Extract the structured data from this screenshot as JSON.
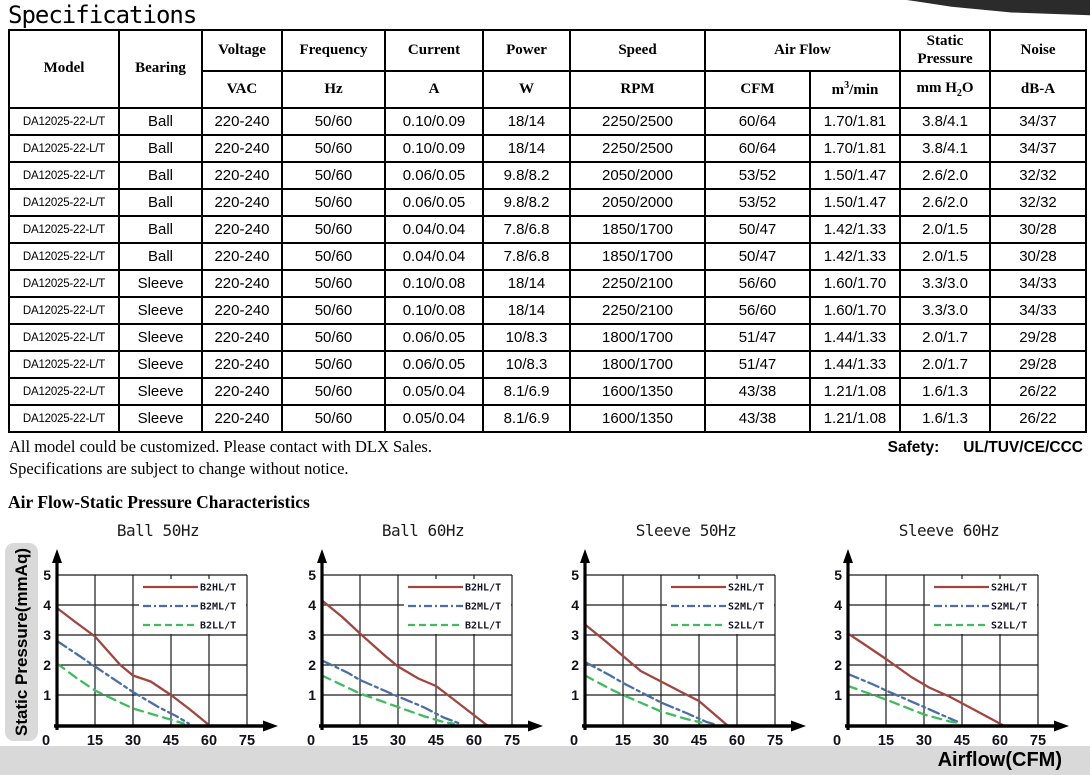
{
  "page": {
    "title": "Specifications",
    "note_line1": "All model could be customized. Please contact with DLX Sales.",
    "note_line2": "Specifications are subject to change without notice.",
    "safety_label": "Safety:",
    "safety_value": "UL/TUV/CE/CCC",
    "section_title": "Air Flow-Static Pressure Characteristics",
    "y_axis_label": "Static Pressure(mmAq)",
    "x_axis_label": "Airflow(CFM)"
  },
  "table": {
    "header": {
      "model": "Model",
      "bearing": "Bearing",
      "voltage": "Voltage",
      "frequency": "Frequency",
      "current": "Current",
      "power": "Power",
      "speed": "Speed",
      "air_flow": "Air Flow",
      "static_pressure": "Static Pressure",
      "noise": "Noise",
      "units": {
        "vac": "VAC",
        "hz": "Hz",
        "a": "A",
        "w": "W",
        "rpm": "RPM",
        "cfm": "CFM",
        "m3": {
          "base": "m",
          "sup": "3",
          "rest": "/min"
        },
        "h2o": {
          "base": "mm H",
          "sub": "2",
          "rest": "O"
        },
        "dba": "dB-A"
      }
    },
    "rows": [
      [
        "DA12025-22-L/T",
        "Ball",
        "220-240",
        "50/60",
        "0.10/0.09",
        "18/14",
        "2250/2500",
        "60/64",
        "1.70/1.81",
        "3.8/4.1",
        "34/37"
      ],
      [
        "DA12025-22-L/T",
        "Ball",
        "220-240",
        "50/60",
        "0.10/0.09",
        "18/14",
        "2250/2500",
        "60/64",
        "1.70/1.81",
        "3.8/4.1",
        "34/37"
      ],
      [
        "DA12025-22-L/T",
        "Ball",
        "220-240",
        "50/60",
        "0.06/0.05",
        "9.8/8.2",
        "2050/2000",
        "53/52",
        "1.50/1.47",
        "2.6/2.0",
        "32/32"
      ],
      [
        "DA12025-22-L/T",
        "Ball",
        "220-240",
        "50/60",
        "0.06/0.05",
        "9.8/8.2",
        "2050/2000",
        "53/52",
        "1.50/1.47",
        "2.6/2.0",
        "32/32"
      ],
      [
        "DA12025-22-L/T",
        "Ball",
        "220-240",
        "50/60",
        "0.04/0.04",
        "7.8/6.8",
        "1850/1700",
        "50/47",
        "1.42/1.33",
        "2.0/1.5",
        "30/28"
      ],
      [
        "DA12025-22-L/T",
        "Ball",
        "220-240",
        "50/60",
        "0.04/0.04",
        "7.8/6.8",
        "1850/1700",
        "50/47",
        "1.42/1.33",
        "2.0/1.5",
        "30/28"
      ],
      [
        "DA12025-22-L/T",
        "Sleeve",
        "220-240",
        "50/60",
        "0.10/0.08",
        "18/14",
        "2250/2100",
        "56/60",
        "1.60/1.70",
        "3.3/3.0",
        "34/33"
      ],
      [
        "DA12025-22-L/T",
        "Sleeve",
        "220-240",
        "50/60",
        "0.10/0.08",
        "18/14",
        "2250/2100",
        "56/60",
        "1.60/1.70",
        "3.3/3.0",
        "34/33"
      ],
      [
        "DA12025-22-L/T",
        "Sleeve",
        "220-240",
        "50/60",
        "0.06/0.05",
        "10/8.3",
        "1800/1700",
        "51/47",
        "1.44/1.33",
        "2.0/1.7",
        "29/28"
      ],
      [
        "DA12025-22-L/T",
        "Sleeve",
        "220-240",
        "50/60",
        "0.06/0.05",
        "10/8.3",
        "1800/1700",
        "51/47",
        "1.44/1.33",
        "2.0/1.7",
        "29/28"
      ],
      [
        "DA12025-22-L/T",
        "Sleeve",
        "220-240",
        "50/60",
        "0.05/0.04",
        "8.1/6.9",
        "1600/1350",
        "43/38",
        "1.21/1.08",
        "1.6/1.3",
        "26/22"
      ],
      [
        "DA12025-22-L/T",
        "Sleeve",
        "220-240",
        "50/60",
        "0.05/0.04",
        "8.1/6.9",
        "1600/1350",
        "43/38",
        "1.21/1.08",
        "1.6/1.3",
        "26/22"
      ]
    ]
  },
  "chart_data": [
    {
      "type": "line",
      "title": "Ball 50Hz",
      "xlabel": "Airflow(CFM)",
      "ylabel": "Static Pressure(mmAq)",
      "xlim": [
        0,
        75
      ],
      "ylim": [
        0,
        5
      ],
      "xticks": [
        0,
        15,
        30,
        45,
        60,
        75
      ],
      "yticks": [
        0,
        1,
        2,
        3,
        4,
        5
      ],
      "grid": true,
      "legend_position": "top-right",
      "series": [
        {
          "name": "B2HL/T",
          "color": "#a1453f",
          "dash": "solid",
          "points": [
            [
              0,
              3.9
            ],
            [
              7,
              3.45
            ],
            [
              15,
              2.95
            ],
            [
              25,
              2.0
            ],
            [
              30,
              1.65
            ],
            [
              37,
              1.45
            ],
            [
              45,
              1.0
            ],
            [
              52,
              0.55
            ],
            [
              60,
              0
            ]
          ]
        },
        {
          "name": "B2ML/T",
          "color": "#4a6fa5",
          "dash": "dashdot",
          "points": [
            [
              0,
              2.8
            ],
            [
              8,
              2.35
            ],
            [
              15,
              1.95
            ],
            [
              30,
              1.1
            ],
            [
              40,
              0.6
            ],
            [
              47,
              0.3
            ],
            [
              52,
              0.05
            ]
          ]
        },
        {
          "name": "B2LL/T",
          "color": "#3ebc5e",
          "dash": "dashed",
          "points": [
            [
              0,
              2.05
            ],
            [
              8,
              1.55
            ],
            [
              15,
              1.15
            ],
            [
              25,
              0.75
            ],
            [
              30,
              0.55
            ],
            [
              40,
              0.3
            ],
            [
              50,
              0.05
            ]
          ]
        }
      ]
    },
    {
      "type": "line",
      "title": "Ball 60Hz",
      "xlabel": "Airflow(CFM)",
      "ylabel": "Static Pressure(mmAq)",
      "xlim": [
        0,
        75
      ],
      "ylim": [
        0,
        5
      ],
      "xticks": [
        0,
        15,
        30,
        45,
        60,
        75
      ],
      "yticks": [
        0,
        1,
        2,
        3,
        4,
        5
      ],
      "grid": true,
      "legend_position": "top-right",
      "series": [
        {
          "name": "B2HL/T",
          "color": "#a1453f",
          "dash": "solid",
          "points": [
            [
              0,
              4.15
            ],
            [
              8,
              3.6
            ],
            [
              15,
              3.05
            ],
            [
              25,
              2.3
            ],
            [
              30,
              1.95
            ],
            [
              38,
              1.55
            ],
            [
              45,
              1.3
            ],
            [
              52,
              0.85
            ],
            [
              65,
              0
            ]
          ]
        },
        {
          "name": "B2ML/T",
          "color": "#4a6fa5",
          "dash": "dashdot",
          "points": [
            [
              0,
              2.15
            ],
            [
              10,
              1.75
            ],
            [
              15,
              1.5
            ],
            [
              30,
              0.95
            ],
            [
              40,
              0.6
            ],
            [
              48,
              0.25
            ],
            [
              55,
              0.03
            ]
          ]
        },
        {
          "name": "B2LL/T",
          "color": "#3ebc5e",
          "dash": "dashed",
          "points": [
            [
              0,
              1.65
            ],
            [
              10,
              1.25
            ],
            [
              15,
              1.05
            ],
            [
              30,
              0.6
            ],
            [
              40,
              0.3
            ],
            [
              48,
              0.1
            ],
            [
              52,
              0.04
            ]
          ]
        }
      ]
    },
    {
      "type": "line",
      "title": "Sleeve 50Hz",
      "xlabel": "Airflow(CFM)",
      "ylabel": "Static Pressure(mmAq)",
      "xlim": [
        0,
        75
      ],
      "ylim": [
        0,
        5
      ],
      "xticks": [
        0,
        15,
        30,
        45,
        60,
        75
      ],
      "yticks": [
        0,
        1,
        2,
        3,
        4,
        5
      ],
      "grid": true,
      "legend_position": "top-right",
      "series": [
        {
          "name": "S2HL/T",
          "color": "#a1453f",
          "dash": "solid",
          "points": [
            [
              0,
              3.35
            ],
            [
              8,
              2.8
            ],
            [
              15,
              2.3
            ],
            [
              22,
              1.8
            ],
            [
              30,
              1.45
            ],
            [
              38,
              1.1
            ],
            [
              45,
              0.8
            ],
            [
              56,
              0
            ]
          ]
        },
        {
          "name": "S2ML/T",
          "color": "#4a6fa5",
          "dash": "dashdot",
          "points": [
            [
              0,
              2.1
            ],
            [
              10,
              1.65
            ],
            [
              15,
              1.4
            ],
            [
              30,
              0.75
            ],
            [
              40,
              0.4
            ],
            [
              48,
              0.1
            ],
            [
              51,
              0.03
            ]
          ]
        },
        {
          "name": "S2LL/T",
          "color": "#3ebc5e",
          "dash": "dashed",
          "points": [
            [
              0,
              1.65
            ],
            [
              10,
              1.2
            ],
            [
              15,
              1.0
            ],
            [
              30,
              0.45
            ],
            [
              40,
              0.2
            ],
            [
              46,
              0.08
            ]
          ]
        }
      ]
    },
    {
      "type": "line",
      "title": "Sleeve 60Hz",
      "xlabel": "Airflow(CFM)",
      "ylabel": "Static Pressure(mmAq)",
      "xlim": [
        0,
        75
      ],
      "ylim": [
        0,
        5
      ],
      "xticks": [
        0,
        15,
        30,
        45,
        60,
        75
      ],
      "yticks": [
        0,
        1,
        2,
        3,
        4,
        5
      ],
      "grid": true,
      "legend_position": "top-right",
      "series": [
        {
          "name": "S2HL/T",
          "color": "#a1453f",
          "dash": "solid",
          "points": [
            [
              0,
              3.05
            ],
            [
              8,
              2.6
            ],
            [
              15,
              2.2
            ],
            [
              25,
              1.6
            ],
            [
              32,
              1.25
            ],
            [
              40,
              0.95
            ],
            [
              50,
              0.5
            ],
            [
              61,
              0
            ]
          ]
        },
        {
          "name": "S2ML/T",
          "color": "#4a6fa5",
          "dash": "dashdot",
          "points": [
            [
              0,
              1.7
            ],
            [
              10,
              1.35
            ],
            [
              15,
              1.15
            ],
            [
              30,
              0.6
            ],
            [
              38,
              0.3
            ],
            [
              43,
              0.12
            ]
          ]
        },
        {
          "name": "S2LL/T",
          "color": "#3ebc5e",
          "dash": "dashed",
          "points": [
            [
              0,
              1.3
            ],
            [
              10,
              1.0
            ],
            [
              15,
              0.85
            ],
            [
              30,
              0.35
            ],
            [
              40,
              0.12
            ],
            [
              43,
              0.08
            ]
          ]
        }
      ]
    }
  ]
}
